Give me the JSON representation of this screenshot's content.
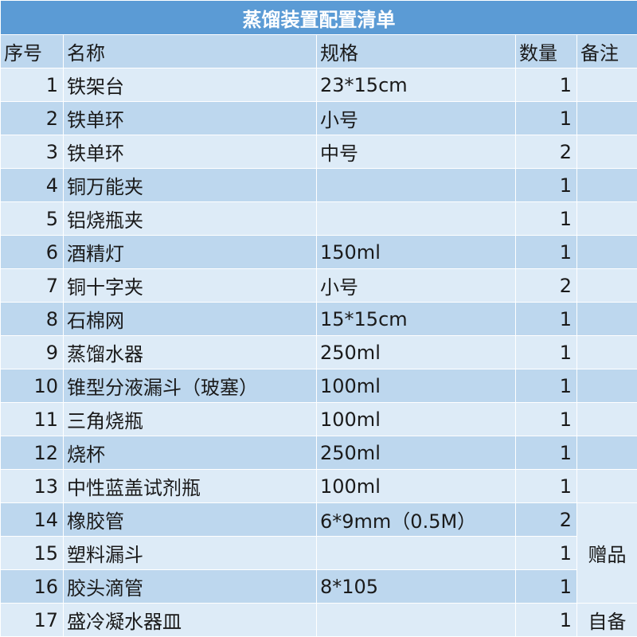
{
  "title": "蒸馏装置配置清单",
  "headers": {
    "no": "序号",
    "name": "名称",
    "spec": "规格",
    "qty": "数量",
    "note": "备注"
  },
  "rows": [
    {
      "no": "1",
      "name": "铁架台",
      "spec": "23*15cm",
      "qty": "1"
    },
    {
      "no": "2",
      "name": "铁单环",
      "spec": "小号",
      "qty": "1"
    },
    {
      "no": "3",
      "name": "铁单环",
      "spec": "中号",
      "qty": "2"
    },
    {
      "no": "4",
      "name": "铜万能夹",
      "spec": "",
      "qty": "1"
    },
    {
      "no": "5",
      "name": "铝烧瓶夹",
      "spec": "",
      "qty": "1"
    },
    {
      "no": "6",
      "name": "酒精灯",
      "spec": "150ml",
      "qty": "1"
    },
    {
      "no": "7",
      "name": "铜十字夹",
      "spec": "小号",
      "qty": "2"
    },
    {
      "no": "8",
      "name": "石棉网",
      "spec": "15*15cm",
      "qty": "1"
    },
    {
      "no": "9",
      "name": "蒸馏水器",
      "spec": "250ml",
      "qty": "1"
    },
    {
      "no": "10",
      "name": "锥型分液漏斗（玻塞）",
      "spec": "100ml",
      "qty": "1"
    },
    {
      "no": "11",
      "name": "三角烧瓶",
      "spec": "100ml",
      "qty": "1"
    },
    {
      "no": "12",
      "name": "烧杯",
      "spec": "250ml",
      "qty": "1"
    },
    {
      "no": "13",
      "name": "中性蓝盖试剂瓶",
      "spec": "100ml",
      "qty": "1"
    },
    {
      "no": "14",
      "name": "橡胶管",
      "spec": "6*9mm（0.5M）",
      "qty": "2"
    },
    {
      "no": "15",
      "name": "塑料漏斗",
      "spec": "",
      "qty": "1"
    },
    {
      "no": "16",
      "name": "胶头滴管",
      "spec": "8*105",
      "qty": "1"
    },
    {
      "no": "17",
      "name": "盛冷凝水器皿",
      "spec": "",
      "qty": "1"
    }
  ],
  "notes": {
    "gift": "赠品",
    "self": "自备"
  }
}
